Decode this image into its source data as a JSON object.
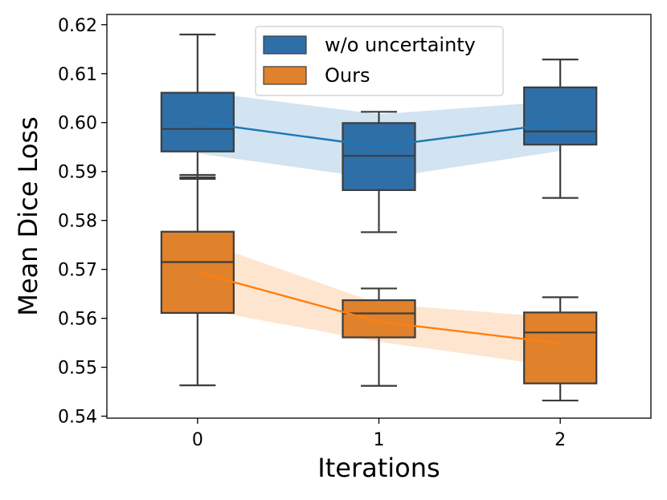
{
  "chart_data": {
    "type": "box",
    "title": "",
    "xlabel": "Iterations",
    "ylabel": "Mean Dice Loss",
    "categories": [
      "0",
      "1",
      "2"
    ],
    "x": [
      0,
      1,
      2
    ],
    "xlim": [
      -0.5,
      2.5
    ],
    "ylim": [
      0.5396,
      0.6221
    ],
    "yticks": [
      0.54,
      0.55,
      0.56,
      0.57,
      0.58,
      0.59,
      0.6,
      0.61,
      0.62
    ],
    "ytick_labels": [
      "0.54",
      "0.55",
      "0.56",
      "0.57",
      "0.58",
      "0.59",
      "0.60",
      "0.61",
      "0.62"
    ],
    "legend_position": "top-center",
    "series": [
      {
        "name": "w/o uncertainty",
        "color": "#1f77b4",
        "box_color": "#2f6fa8",
        "fill_color": "#b4d1e8",
        "boxes": [
          {
            "whislo": 0.5888,
            "q1": 0.5941,
            "med": 0.5987,
            "q3": 0.6061,
            "whishi": 0.618
          },
          {
            "whislo": 0.5776,
            "q1": 0.5862,
            "med": 0.5932,
            "q3": 0.5999,
            "whishi": 0.6022
          },
          {
            "whislo": 0.5846,
            "q1": 0.5955,
            "med": 0.5982,
            "q3": 0.6072,
            "whishi": 0.6129
          }
        ],
        "outliers": [
          [],
          [],
          []
        ],
        "mean_line": [
          0.6001,
          0.5951,
          0.5999
        ],
        "band_lower": [
          0.5937,
          0.5885,
          0.5942
        ],
        "band_upper": [
          0.6064,
          0.6017,
          0.6044
        ]
      },
      {
        "name": "Ours",
        "color": "#ff7f0e",
        "box_color": "#e0812c",
        "fill_color": "#fcd4b0",
        "boxes": [
          {
            "whislo": 0.5463,
            "q1": 0.5611,
            "med": 0.5715,
            "q3": 0.5777,
            "whishi": 0.5885
          },
          {
            "whislo": 0.5462,
            "q1": 0.5561,
            "med": 0.561,
            "q3": 0.5637,
            "whishi": 0.5661
          },
          {
            "whislo": 0.5432,
            "q1": 0.5467,
            "med": 0.5571,
            "q3": 0.5612,
            "whishi": 0.5643
          }
        ],
        "outliers": [
          [
            0.5893
          ],
          [],
          []
        ],
        "mean_line": [
          0.5694,
          0.5593,
          0.5549
        ],
        "band_lower": [
          0.562,
          0.5552,
          0.5501
        ],
        "band_upper": [
          0.576,
          0.563,
          0.5601
        ]
      }
    ]
  }
}
